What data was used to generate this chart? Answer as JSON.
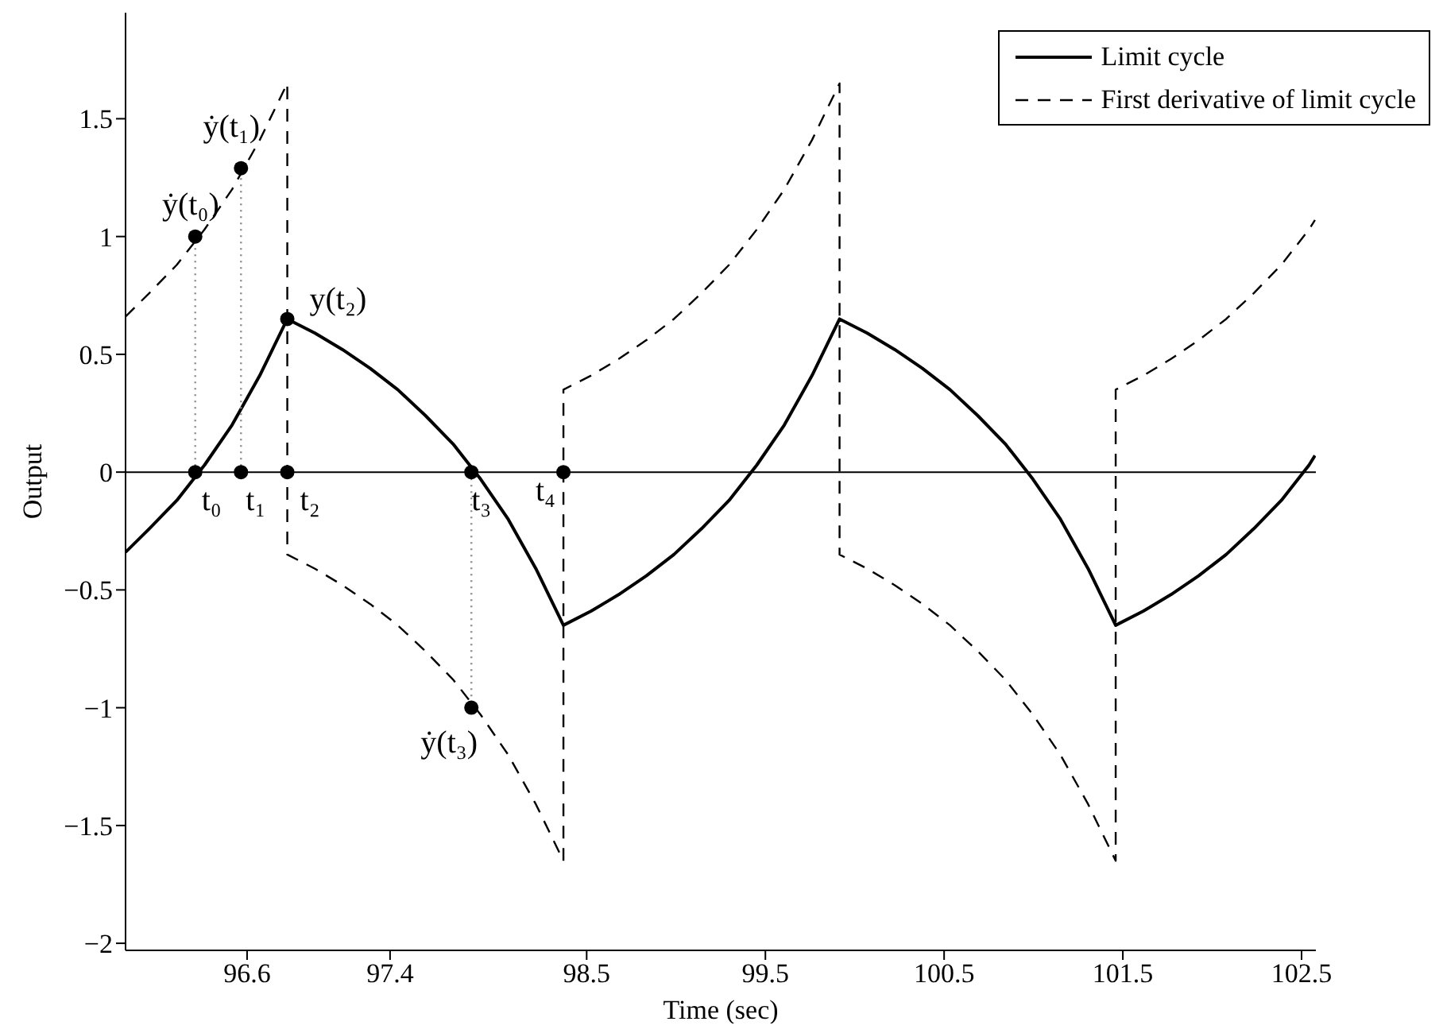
{
  "chart_data": {
    "type": "line",
    "xlabel": "Time (sec)",
    "ylabel": "Output",
    "xlim": [
      95.92,
      102.58
    ],
    "ylim": [
      -2.03,
      1.95
    ],
    "xticks": [
      96.6,
      97.4,
      98.5,
      99.5,
      100.5,
      101.5,
      102.5
    ],
    "yticks": [
      -2,
      -1.5,
      -1,
      -0.5,
      0,
      0.5,
      1,
      1.5
    ],
    "grid": false,
    "legend": "top right",
    "ref_lines": [
      {
        "axis": "y",
        "value": 0,
        "color": "#000000"
      }
    ],
    "annotations": [
      {
        "text": "ẏ(t₀)",
        "x": 96.31,
        "y": 1
      },
      {
        "text": "ẏ(t₁)",
        "x": 96.566,
        "y": 1.29
      },
      {
        "text": "y(t₂)",
        "x": 96.825,
        "y": 0.65
      },
      {
        "text": "ẏ(t₃)",
        "x": 97.855,
        "y": -1
      },
      {
        "text": "t₀",
        "x": 96.31,
        "y": 0
      },
      {
        "text": "t₁",
        "x": 96.566,
        "y": 0
      },
      {
        "text": "t₂",
        "x": 96.825,
        "y": 0
      },
      {
        "text": "t₃",
        "x": 97.855,
        "y": 0
      },
      {
        "text": "t₄",
        "x": 98.37,
        "y": 0
      }
    ],
    "series": [
      {
        "name": "Limit cycle",
        "color": "#000000",
        "line_style": "solid",
        "marker": "none",
        "x": [
          95.92,
          96.053,
          96.207,
          96.362,
          96.516,
          96.671,
          96.825,
          96.98,
          97.134,
          97.289,
          97.443,
          97.598,
          97.752,
          97.907,
          98.061,
          98.216,
          98.37,
          98.525,
          98.679,
          98.834,
          98.988,
          99.143,
          99.297,
          99.452,
          99.606,
          99.761,
          99.915,
          100.07,
          100.224,
          100.379,
          100.533,
          100.688,
          100.842,
          100.997,
          101.151,
          101.306,
          101.46,
          101.615,
          101.769,
          101.924,
          102.078,
          102.233,
          102.387,
          102.542,
          102.575
        ],
        "values": [
          -0.34,
          -0.24,
          -0.12,
          0.03,
          0.2,
          0.41,
          0.65,
          0.59,
          0.52,
          0.44,
          0.35,
          0.24,
          0.12,
          -0.03,
          -0.2,
          -0.41,
          -0.65,
          -0.59,
          -0.52,
          -0.44,
          -0.35,
          -0.24,
          -0.12,
          0.03,
          0.2,
          0.41,
          0.65,
          0.59,
          0.52,
          0.44,
          0.35,
          0.24,
          0.12,
          -0.03,
          -0.2,
          -0.41,
          -0.65,
          -0.59,
          -0.52,
          -0.44,
          -0.35,
          -0.24,
          -0.12,
          0.03,
          0.07
        ]
      },
      {
        "name": "First derivative of limit cycle",
        "color": "#000000",
        "line_style": "dashed",
        "marker": "none",
        "x": [
          95.92,
          96.053,
          96.207,
          96.362,
          96.516,
          96.671,
          96.825,
          96.825,
          96.98,
          97.134,
          97.289,
          97.443,
          97.598,
          97.752,
          97.907,
          98.061,
          98.216,
          98.37,
          98.37,
          98.525,
          98.679,
          98.834,
          98.988,
          99.143,
          99.297,
          99.452,
          99.606,
          99.761,
          99.915,
          99.915,
          100.07,
          100.224,
          100.379,
          100.533,
          100.688,
          100.842,
          100.997,
          101.151,
          101.306,
          101.46,
          101.46,
          101.615,
          101.769,
          101.924,
          102.078,
          102.233,
          102.387,
          102.542,
          102.575
        ],
        "values": [
          0.66,
          0.76,
          0.88,
          1.03,
          1.2,
          1.41,
          1.65,
          -0.35,
          -0.41,
          -0.48,
          -0.56,
          -0.65,
          -0.76,
          -0.88,
          -1.03,
          -1.2,
          -1.41,
          -1.65,
          0.35,
          0.41,
          0.48,
          0.56,
          0.65,
          0.76,
          0.88,
          1.03,
          1.2,
          1.41,
          1.65,
          -0.35,
          -0.41,
          -0.48,
          -0.56,
          -0.65,
          -0.76,
          -0.88,
          -1.03,
          -1.2,
          -1.41,
          -1.65,
          0.35,
          0.41,
          0.48,
          0.56,
          0.65,
          0.76,
          0.88,
          1.03,
          1.07
        ]
      },
      {
        "type": "line",
        "color": "#888888",
        "line_style": "dotted",
        "marker": "none",
        "x": [
          96.31,
          96.31
        ],
        "values": [
          0,
          1
        ]
      },
      {
        "type": "line",
        "color": "#888888",
        "line_style": "dotted",
        "marker": "none",
        "x": [
          96.566,
          96.566
        ],
        "values": [
          0,
          1.29
        ]
      },
      {
        "type": "line",
        "color": "#888888",
        "line_style": "dotted",
        "marker": "none",
        "x": [
          97.855,
          97.855
        ],
        "values": [
          0,
          -1
        ]
      },
      {
        "type": "scatter",
        "color": "#000000",
        "marker": "circle",
        "x": [
          96.31,
          96.31,
          96.566,
          96.566,
          96.825,
          96.825,
          97.855,
          97.855,
          98.37
        ],
        "values": [
          0,
          1,
          0,
          1.29,
          0,
          0.65,
          0,
          -1,
          0
        ]
      }
    ]
  }
}
